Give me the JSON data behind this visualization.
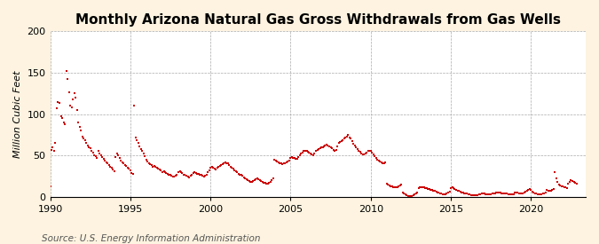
{
  "title": "Monthly Arizona Natural Gas Gross Withdrawals from Gas Wells",
  "ylabel": "Million Cubic Feet",
  "source": "Source: U.S. Energy Information Administration",
  "marker_color": "#cc0000",
  "background_color": "#fdf3e0",
  "plot_bg_color": "#ffffff",
  "grid_color": "#aaaaaa",
  "ylim": [
    0,
    200
  ],
  "yticks": [
    0,
    50,
    100,
    150,
    200
  ],
  "title_fontsize": 11,
  "ylabel_fontsize": 8,
  "source_fontsize": 7.5,
  "marker_size": 4,
  "values": [
    13,
    57,
    60,
    55,
    65,
    107,
    115,
    113,
    97,
    95,
    90,
    88,
    152,
    142,
    126,
    110,
    108,
    118,
    125,
    120,
    105,
    90,
    85,
    80,
    73,
    70,
    68,
    65,
    62,
    60,
    59,
    56,
    53,
    50,
    49,
    47,
    55,
    52,
    50,
    48,
    46,
    44,
    42,
    40,
    38,
    36,
    35,
    33,
    31,
    48,
    52,
    50,
    47,
    44,
    42,
    40,
    38,
    37,
    35,
    34,
    32,
    29,
    28,
    110,
    72,
    68,
    65,
    61,
    58,
    55,
    52,
    49,
    45,
    43,
    41,
    39,
    38,
    36,
    37,
    36,
    35,
    34,
    33,
    32,
    30,
    31,
    30,
    29,
    28,
    27,
    26,
    25,
    24,
    24,
    25,
    26,
    30,
    31,
    30,
    29,
    27,
    26,
    25,
    24,
    23,
    25,
    27,
    29,
    30,
    29,
    28,
    28,
    27,
    26,
    25,
    24,
    25,
    27,
    30,
    32,
    35,
    36,
    35,
    34,
    33,
    35,
    36,
    37,
    38,
    39,
    40,
    42,
    41,
    40,
    38,
    36,
    35,
    34,
    32,
    31,
    30,
    28,
    27,
    26,
    25,
    23,
    22,
    21,
    20,
    19,
    18,
    18,
    19,
    20,
    21,
    22,
    21,
    20,
    19,
    18,
    17,
    17,
    16,
    16,
    17,
    18,
    20,
    22,
    45,
    44,
    43,
    42,
    41,
    40,
    39,
    40,
    41,
    42,
    43,
    44,
    47,
    48,
    47,
    47,
    46,
    46,
    48,
    50,
    52,
    53,
    55,
    56,
    55,
    54,
    53,
    52,
    51,
    50,
    52,
    55,
    57,
    58,
    59,
    60,
    60,
    61,
    62,
    63,
    62,
    61,
    60,
    59,
    57,
    56,
    57,
    61,
    65,
    66,
    67,
    68,
    70,
    72,
    73,
    75,
    72,
    70,
    67,
    64,
    62,
    60,
    58,
    56,
    54,
    52,
    51,
    51,
    52,
    53,
    55,
    56,
    55,
    53,
    51,
    49,
    47,
    45,
    44,
    43,
    42,
    41,
    41,
    42,
    16,
    15,
    14,
    13,
    13,
    12,
    11,
    11,
    12,
    13,
    14,
    15,
    5,
    4,
    3,
    2,
    1,
    1,
    1,
    1,
    2,
    3,
    4,
    5,
    10,
    11,
    12,
    12,
    11,
    10,
    10,
    9,
    9,
    8,
    8,
    7,
    7,
    6,
    5,
    5,
    4,
    4,
    3,
    3,
    3,
    4,
    5,
    6,
    10,
    11,
    10,
    9,
    8,
    7,
    7,
    6,
    5,
    5,
    4,
    4,
    4,
    3,
    3,
    2,
    2,
    2,
    2,
    2,
    2,
    3,
    3,
    4,
    4,
    4,
    3,
    3,
    3,
    3,
    3,
    4,
    4,
    4,
    5,
    5,
    5,
    5,
    4,
    4,
    4,
    4,
    4,
    3,
    3,
    3,
    3,
    3,
    5,
    5,
    5,
    4,
    4,
    4,
    4,
    5,
    6,
    7,
    8,
    9,
    8,
    6,
    5,
    4,
    4,
    3,
    3,
    3,
    3,
    4,
    4,
    5,
    8,
    7,
    7,
    7,
    8,
    9,
    30,
    22,
    18,
    15,
    14,
    13,
    13,
    12,
    11,
    10,
    16,
    18,
    20,
    19,
    18,
    17,
    16,
    15
  ]
}
